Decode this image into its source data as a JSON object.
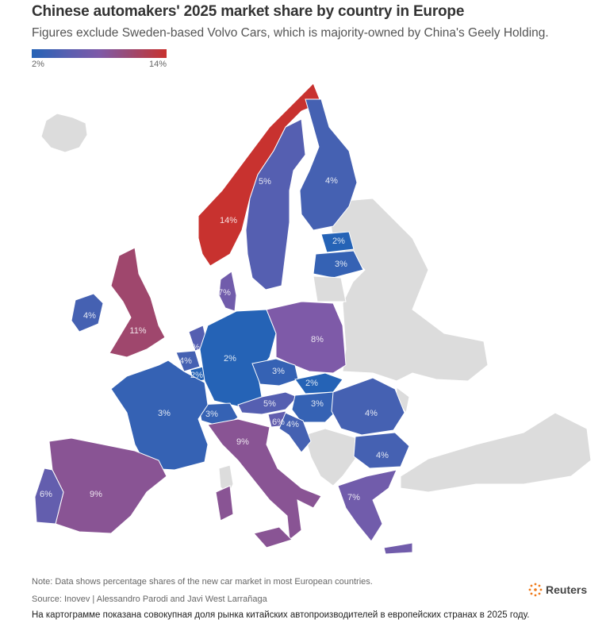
{
  "header": {
    "title": "Chinese automakers' 2025 market share by country in Europe",
    "subtitle": "Figures exclude Sweden-based Volvo Cars, which is majority-owned by China's Geely Holding."
  },
  "legend": {
    "min_label": "2%",
    "max_label": "14%",
    "min_value": 2,
    "max_value": 14
  },
  "colors": {
    "low": "#2563b6",
    "mid": "#7e5aa8",
    "high": "#c8322f",
    "no_data": "#dcdcdc"
  },
  "countries": [
    {
      "id": "norway",
      "label": "14%",
      "value": 14
    },
    {
      "id": "sweden",
      "label": "5%",
      "value": 5
    },
    {
      "id": "finland",
      "label": "4%",
      "value": 4
    },
    {
      "id": "estonia",
      "label": "2%",
      "value": 2
    },
    {
      "id": "latvia",
      "label": "3%",
      "value": 3
    },
    {
      "id": "denmark",
      "label": "7%",
      "value": 7
    },
    {
      "id": "ireland",
      "label": "4%",
      "value": 4
    },
    {
      "id": "uk",
      "label": "11%",
      "value": 11
    },
    {
      "id": "netherlands",
      "label": "5%",
      "value": 5
    },
    {
      "id": "belgium",
      "label": "4%",
      "value": 4
    },
    {
      "id": "luxembourg",
      "label": "2%",
      "value": 2
    },
    {
      "id": "germany",
      "label": "2%",
      "value": 2
    },
    {
      "id": "poland",
      "label": "8%",
      "value": 8
    },
    {
      "id": "czechia",
      "label": "3%",
      "value": 3
    },
    {
      "id": "slovakia",
      "label": "2%",
      "value": 2
    },
    {
      "id": "austria",
      "label": "5%",
      "value": 5
    },
    {
      "id": "hungary",
      "label": "3%",
      "value": 3
    },
    {
      "id": "slovenia",
      "label": "6%",
      "value": 6
    },
    {
      "id": "croatia",
      "label": "4%",
      "value": 4
    },
    {
      "id": "romania",
      "label": "4%",
      "value": 4
    },
    {
      "id": "bulgaria",
      "label": "4%",
      "value": 4
    },
    {
      "id": "greece",
      "label": "7%",
      "value": 7
    },
    {
      "id": "switzerland",
      "label": "3%",
      "value": 3
    },
    {
      "id": "france",
      "label": "3%",
      "value": 3
    },
    {
      "id": "italy",
      "label": "9%",
      "value": 9
    },
    {
      "id": "spain",
      "label": "9%",
      "value": 9
    },
    {
      "id": "portugal",
      "label": "6%",
      "value": 6
    }
  ],
  "footer": {
    "note": "Note: Data shows percentage shares of the new car market in most European countries.",
    "source": "Source: Inovev | Alessandro Parodi and Javi West Larrañaga",
    "brand": "Reuters",
    "caption": "На картограмме показана совокупная доля рынка китайских автопроизводителей в европейских странах в 2025 году."
  }
}
